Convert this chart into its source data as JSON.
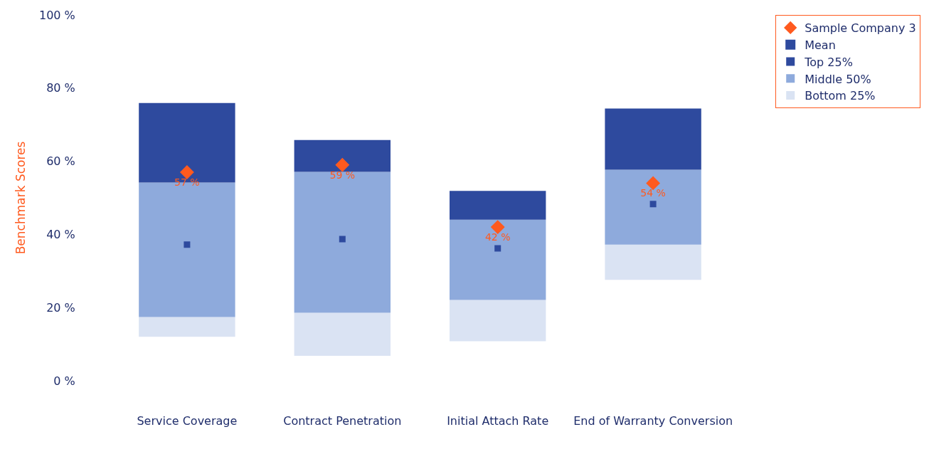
{
  "chart_data": {
    "type": "bar",
    "ylabel": "Benchmark Scores",
    "categories": [
      "Service Coverage",
      "Contract Penetration",
      "Initial Attach Rate",
      "End of Warranty Conversion"
    ],
    "series": [
      {
        "name": "Bottom 25%",
        "color": "#dae3f3",
        "base": [
          12,
          6.8,
          10.8,
          27.6
        ],
        "values": [
          5.4,
          11.8,
          11.3,
          9.6
        ]
      },
      {
        "name": "Middle 50%",
        "color": "#8eaadc",
        "base": [
          17.4,
          18.6,
          22.1,
          37.2
        ],
        "values": [
          36.8,
          38.5,
          21.9,
          20.5
        ]
      },
      {
        "name": "Top 25%",
        "color": "#2e4a9e",
        "base": [
          54.2,
          57.1,
          44,
          57.7
        ],
        "values": [
          21.7,
          8.7,
          7.9,
          16.7
        ]
      },
      {
        "name": "Mean",
        "type": "scatter",
        "marker": "square",
        "color": "#2e4a9e",
        "values": [
          37.2,
          38.7,
          36.2,
          48.3
        ]
      },
      {
        "name": "Sample Company 3",
        "type": "scatter",
        "marker": "diamond",
        "color": "#ff5a1f",
        "values": [
          57,
          59,
          42,
          54
        ],
        "value_labels": [
          "57 %",
          "59 %",
          "42 %",
          "54 %"
        ]
      }
    ],
    "ylim": [
      0,
      100
    ],
    "yticks": [
      {
        "value": 0,
        "label": "0 %"
      },
      {
        "value": 20,
        "label": "20 %"
      },
      {
        "value": 40,
        "label": "40 %"
      },
      {
        "value": 60,
        "label": "60 %"
      },
      {
        "value": 80,
        "label": "80 %"
      },
      {
        "value": 100,
        "label": "100 %"
      }
    ],
    "legend": "right"
  }
}
